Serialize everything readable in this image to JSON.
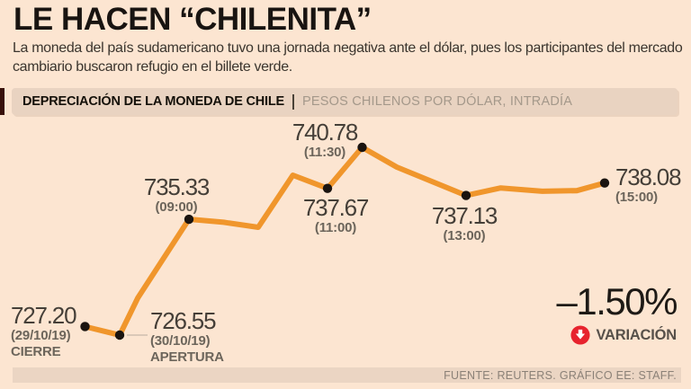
{
  "page": {
    "title": "LE HACEN “CHILENITA”",
    "subtitle_lines": [
      "La moneda del país sudamericano tuvo una jornada negativa ante el dólar, pues los participantes del mercado",
      "cambiario buscaron refugio en el billete verde."
    ],
    "source": "FUENTE: REUTERS. GRÁFICO EE: STAFF."
  },
  "chart_header": {
    "title": "DEPRECIACIÓN DE LA MONEDA DE CHILE",
    "units": "PESOS CHILENOS POR DÓLAR, INTRADÍA"
  },
  "variation": {
    "value": "–1.50%",
    "label": "VARIACIÓN",
    "icon": "arrow-down-circle",
    "color": "#e7232e"
  },
  "chart_data": {
    "type": "line",
    "title": "DEPRECIACIÓN DE LA MONEDA DE CHILE",
    "units": "PESOS CHILENOS POR DÓLAR, INTRADÍA",
    "ylim": [
      726,
      741
    ],
    "line_color": "#f0962c",
    "dot_color": "#1a1410",
    "variation_pct": -1.5,
    "points": [
      {
        "value": "727.20",
        "v": 727.2,
        "t": 7.5,
        "time": "(29/10/19)",
        "name": "CIERRE"
      },
      {
        "value": "726.55",
        "v": 726.55,
        "t": 8.0,
        "time": "(30/10/19)",
        "name": "APERTURA"
      },
      {
        "value": "735.33",
        "v": 735.33,
        "t": 9.0,
        "time": "(09:00)"
      },
      {
        "value": "737.67",
        "v": 737.67,
        "t": 11.0,
        "time": "(11:00)"
      },
      {
        "value": "740.78",
        "v": 740.78,
        "t": 11.5,
        "time": "(11:30)"
      },
      {
        "value": "737.13",
        "v": 737.13,
        "t": 13.0,
        "time": "(13:00)"
      },
      {
        "value": "738.08",
        "v": 738.08,
        "t": 15.0,
        "time": "(15:00)"
      }
    ],
    "path_samples": [
      [
        7.5,
        727.2
      ],
      [
        8.0,
        726.55
      ],
      [
        8.26,
        729.35
      ],
      [
        9.0,
        735.33
      ],
      [
        9.5,
        735.1
      ],
      [
        10.0,
        734.72
      ],
      [
        10.5,
        738.67
      ],
      [
        11.0,
        737.67
      ],
      [
        11.5,
        740.78
      ],
      [
        12.0,
        739.28
      ],
      [
        13.0,
        737.13
      ],
      [
        13.5,
        737.7
      ],
      [
        14.1,
        737.45
      ],
      [
        14.6,
        737.5
      ],
      [
        15.0,
        738.08
      ]
    ]
  }
}
